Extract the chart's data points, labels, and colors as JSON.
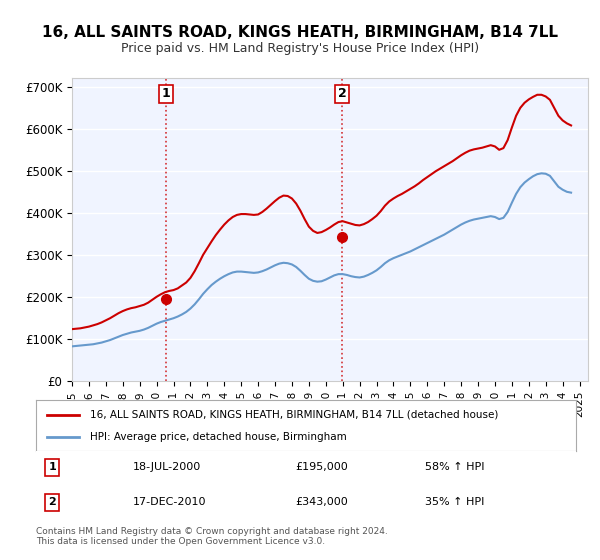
{
  "title": "16, ALL SAINTS ROAD, KINGS HEATH, BIRMINGHAM, B14 7LL",
  "subtitle": "Price paid vs. HM Land Registry's House Price Index (HPI)",
  "legend_line1": "16, ALL SAINTS ROAD, KINGS HEATH, BIRMINGHAM, B14 7LL (detached house)",
  "legend_line2": "HPI: Average price, detached house, Birmingham",
  "sale1_label": "1",
  "sale1_date": "18-JUL-2000",
  "sale1_price": "£195,000",
  "sale1_hpi": "58% ↑ HPI",
  "sale1_x": 2000.54,
  "sale1_y": 195000,
  "sale2_label": "2",
  "sale2_date": "17-DEC-2010",
  "sale2_price": "£343,000",
  "sale2_hpi": "35% ↑ HPI",
  "sale2_x": 2010.96,
  "sale2_y": 343000,
  "ylim": [
    0,
    720000
  ],
  "xlim_start": 1995.0,
  "xlim_end": 2025.5,
  "yticks": [
    0,
    100000,
    200000,
    300000,
    400000,
    500000,
    600000,
    700000
  ],
  "ytick_labels": [
    "£0",
    "£100K",
    "£200K",
    "£300K",
    "£400K",
    "£500K",
    "£600K",
    "£700K"
  ],
  "red_line_color": "#cc0000",
  "blue_line_color": "#6699cc",
  "background_color": "#f0f4ff",
  "grid_color": "#ffffff",
  "footnote": "Contains HM Land Registry data © Crown copyright and database right 2024.\nThis data is licensed under the Open Government Licence v3.0.",
  "hpi_x": [
    1995.0,
    1995.25,
    1995.5,
    1995.75,
    1996.0,
    1996.25,
    1996.5,
    1996.75,
    1997.0,
    1997.25,
    1997.5,
    1997.75,
    1998.0,
    1998.25,
    1998.5,
    1998.75,
    1999.0,
    1999.25,
    1999.5,
    1999.75,
    2000.0,
    2000.25,
    2000.5,
    2000.75,
    2001.0,
    2001.25,
    2001.5,
    2001.75,
    2002.0,
    2002.25,
    2002.5,
    2002.75,
    2003.0,
    2003.25,
    2003.5,
    2003.75,
    2004.0,
    2004.25,
    2004.5,
    2004.75,
    2005.0,
    2005.25,
    2005.5,
    2005.75,
    2006.0,
    2006.25,
    2006.5,
    2006.75,
    2007.0,
    2007.25,
    2007.5,
    2007.75,
    2008.0,
    2008.25,
    2008.5,
    2008.75,
    2009.0,
    2009.25,
    2009.5,
    2009.75,
    2010.0,
    2010.25,
    2010.5,
    2010.75,
    2011.0,
    2011.25,
    2011.5,
    2011.75,
    2012.0,
    2012.25,
    2012.5,
    2012.75,
    2013.0,
    2013.25,
    2013.5,
    2013.75,
    2014.0,
    2014.25,
    2014.5,
    2014.75,
    2015.0,
    2015.25,
    2015.5,
    2015.75,
    2016.0,
    2016.25,
    2016.5,
    2016.75,
    2017.0,
    2017.25,
    2017.5,
    2017.75,
    2018.0,
    2018.25,
    2018.5,
    2018.75,
    2019.0,
    2019.25,
    2019.5,
    2019.75,
    2020.0,
    2020.25,
    2020.5,
    2020.75,
    2021.0,
    2021.25,
    2021.5,
    2021.75,
    2022.0,
    2022.25,
    2022.5,
    2022.75,
    2023.0,
    2023.25,
    2023.5,
    2023.75,
    2024.0,
    2024.25,
    2024.5
  ],
  "hpi_y": [
    82000,
    83000,
    84000,
    85000,
    86000,
    87000,
    89000,
    91000,
    94000,
    97000,
    101000,
    105000,
    109000,
    112000,
    115000,
    117000,
    119000,
    122000,
    126000,
    131000,
    136000,
    140000,
    143000,
    146000,
    149000,
    153000,
    158000,
    164000,
    172000,
    182000,
    194000,
    207000,
    218000,
    228000,
    236000,
    243000,
    249000,
    254000,
    258000,
    260000,
    260000,
    259000,
    258000,
    257000,
    258000,
    261000,
    265000,
    270000,
    275000,
    279000,
    281000,
    280000,
    277000,
    271000,
    262000,
    252000,
    243000,
    238000,
    236000,
    237000,
    241000,
    246000,
    251000,
    254000,
    254000,
    252000,
    249000,
    247000,
    246000,
    248000,
    252000,
    257000,
    263000,
    271000,
    280000,
    287000,
    292000,
    296000,
    300000,
    304000,
    308000,
    313000,
    318000,
    323000,
    328000,
    333000,
    338000,
    343000,
    348000,
    354000,
    360000,
    366000,
    372000,
    377000,
    381000,
    384000,
    386000,
    388000,
    390000,
    392000,
    390000,
    385000,
    388000,
    402000,
    424000,
    445000,
    461000,
    472000,
    480000,
    487000,
    492000,
    494000,
    493000,
    488000,
    475000,
    462000,
    455000,
    450000,
    448000
  ],
  "red_x": [
    1995.0,
    1995.25,
    1995.5,
    1995.75,
    1996.0,
    1996.25,
    1996.5,
    1996.75,
    1997.0,
    1997.25,
    1997.5,
    1997.75,
    1998.0,
    1998.25,
    1998.5,
    1998.75,
    1999.0,
    1999.25,
    1999.5,
    1999.75,
    2000.0,
    2000.25,
    2000.5,
    2000.75,
    2001.0,
    2001.25,
    2001.5,
    2001.75,
    2002.0,
    2002.25,
    2002.5,
    2002.75,
    2003.0,
    2003.25,
    2003.5,
    2003.75,
    2004.0,
    2004.25,
    2004.5,
    2004.75,
    2005.0,
    2005.25,
    2005.5,
    2005.75,
    2006.0,
    2006.25,
    2006.5,
    2006.75,
    2007.0,
    2007.25,
    2007.5,
    2007.75,
    2008.0,
    2008.25,
    2008.5,
    2008.75,
    2009.0,
    2009.25,
    2009.5,
    2009.75,
    2010.0,
    2010.25,
    2010.5,
    2010.75,
    2011.0,
    2011.25,
    2011.5,
    2011.75,
    2012.0,
    2012.25,
    2012.5,
    2012.75,
    2013.0,
    2013.25,
    2013.5,
    2013.75,
    2014.0,
    2014.25,
    2014.5,
    2014.75,
    2015.0,
    2015.25,
    2015.5,
    2015.75,
    2016.0,
    2016.25,
    2016.5,
    2016.75,
    2017.0,
    2017.25,
    2017.5,
    2017.75,
    2018.0,
    2018.25,
    2018.5,
    2018.75,
    2019.0,
    2019.25,
    2019.5,
    2019.75,
    2020.0,
    2020.25,
    2020.5,
    2020.75,
    2021.0,
    2021.25,
    2021.5,
    2021.75,
    2022.0,
    2022.25,
    2022.5,
    2022.75,
    2023.0,
    2023.25,
    2023.5,
    2023.75,
    2024.0,
    2024.25,
    2024.5
  ],
  "red_y": [
    123000,
    124000,
    125000,
    127000,
    129000,
    132000,
    135000,
    139000,
    144000,
    149000,
    155000,
    161000,
    166000,
    170000,
    173000,
    175000,
    178000,
    181000,
    186000,
    193000,
    200000,
    206000,
    211000,
    214000,
    216000,
    220000,
    227000,
    234000,
    245000,
    261000,
    280000,
    300000,
    316000,
    332000,
    347000,
    360000,
    372000,
    382000,
    390000,
    395000,
    397000,
    397000,
    396000,
    395000,
    396000,
    402000,
    410000,
    419000,
    428000,
    436000,
    441000,
    440000,
    434000,
    422000,
    405000,
    385000,
    367000,
    357000,
    352000,
    354000,
    359000,
    365000,
    372000,
    378000,
    380000,
    377000,
    374000,
    371000,
    370000,
    373000,
    378000,
    385000,
    393000,
    404000,
    417000,
    427000,
    434000,
    440000,
    445000,
    451000,
    457000,
    463000,
    470000,
    478000,
    485000,
    492000,
    499000,
    505000,
    511000,
    517000,
    523000,
    530000,
    537000,
    543000,
    548000,
    551000,
    553000,
    555000,
    558000,
    561000,
    558000,
    550000,
    554000,
    573000,
    603000,
    631000,
    650000,
    662000,
    670000,
    676000,
    681000,
    681000,
    677000,
    669000,
    650000,
    631000,
    620000,
    613000,
    608000
  ],
  "xticks": [
    1995,
    1996,
    1997,
    1998,
    1999,
    2000,
    2001,
    2002,
    2003,
    2004,
    2005,
    2006,
    2007,
    2008,
    2009,
    2010,
    2011,
    2012,
    2013,
    2014,
    2015,
    2016,
    2017,
    2018,
    2019,
    2020,
    2021,
    2022,
    2023,
    2024,
    2025
  ]
}
